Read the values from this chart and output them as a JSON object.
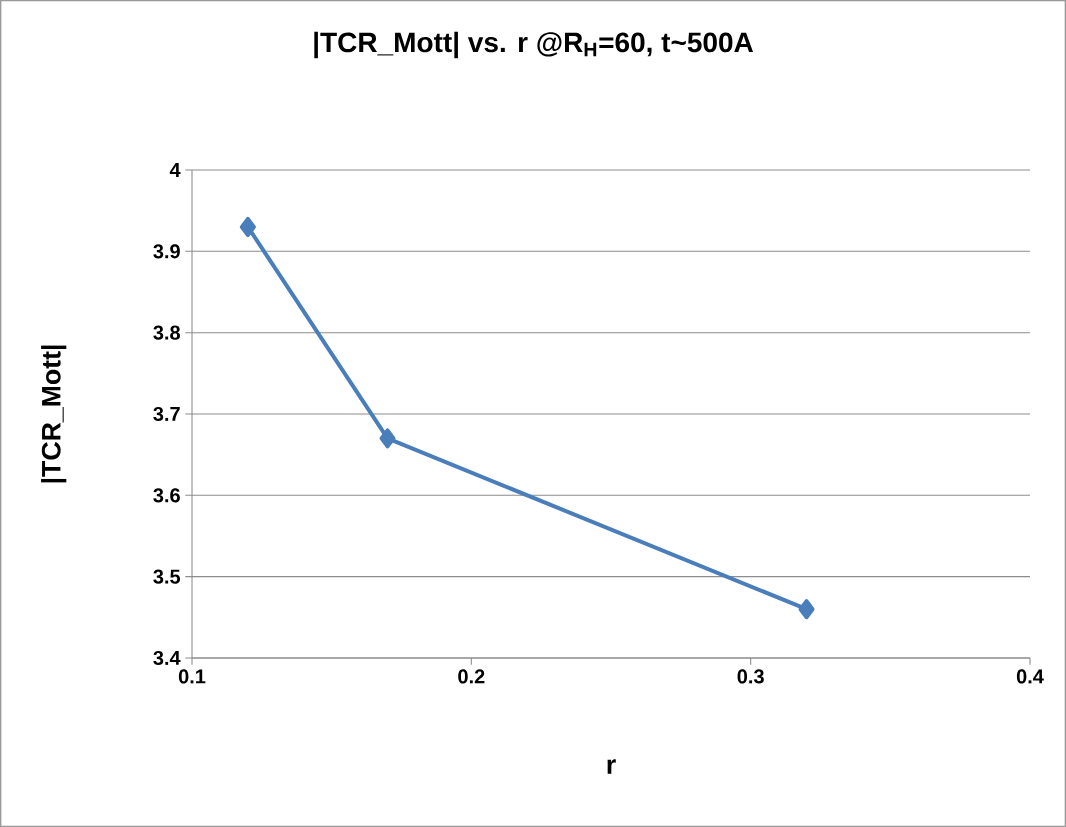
{
  "chart_data": {
    "type": "line",
    "title": "|TCR_Mott| vs. r @R$_{H}$=60, t~500A",
    "xlabel": "r",
    "ylabel": "|TCR_Mott|",
    "x": [
      0.12,
      0.17,
      0.32
    ],
    "series": [
      {
        "color": "#4a7ebb",
        "values": [
          3.93,
          3.67,
          3.46
        ]
      }
    ],
    "xlim": [
      0.1,
      0.4
    ],
    "ylim": [
      3.4,
      4
    ],
    "xticks": [
      0.1,
      0.2,
      0.3,
      0.4
    ],
    "yticks": [
      3.4,
      3.5,
      3.6,
      3.7,
      3.8,
      3.9,
      4
    ],
    "grid": "y",
    "marker": "diamond",
    "line_style": "solid"
  }
}
